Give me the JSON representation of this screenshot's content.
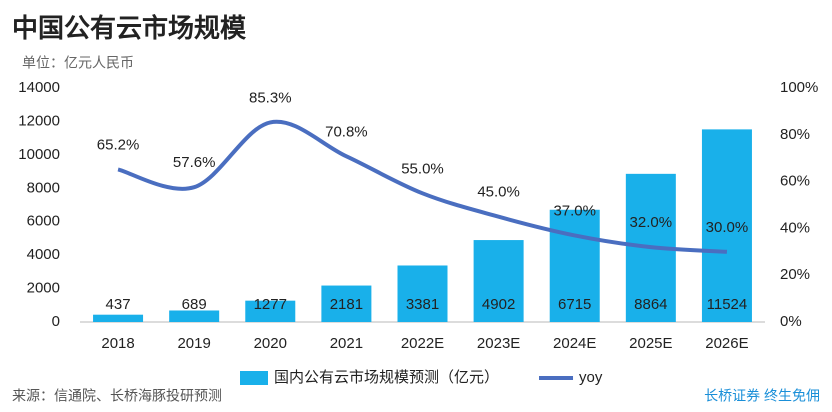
{
  "chart_data": {
    "type": "combo",
    "title": "中国公有云市场规模",
    "subtitle": "单位：亿元人民币",
    "source": "来源：信通院、长桥海豚投研预测",
    "brand": "长桥证券 终生免佣",
    "categories": [
      "2018",
      "2019",
      "2020",
      "2021",
      "2022E",
      "2023E",
      "2024E",
      "2025E",
      "2026E"
    ],
    "series": [
      {
        "name": "国内公有云市场规模预测（亿元）",
        "type": "bar",
        "color": "#19b0ea",
        "values": [
          437,
          689,
          1277,
          2181,
          3381,
          4902,
          6715,
          8864,
          11524
        ]
      },
      {
        "name": "yoy",
        "type": "line",
        "axis": "y2",
        "color": "#4a6ec0",
        "values": [
          65.2,
          57.6,
          85.3,
          70.8,
          55.0,
          45.0,
          37.0,
          32.0,
          30.0
        ],
        "value_labels": [
          "65.2%",
          "57.6%",
          "85.3%",
          "70.8%",
          "55.0%",
          "45.0%",
          "37.0%",
          "32.0%",
          "30.0%"
        ]
      }
    ],
    "ylim": [
      0,
      14000
    ],
    "yticks": [
      0,
      2000,
      4000,
      6000,
      8000,
      10000,
      12000,
      14000
    ],
    "y2lim": [
      0,
      100
    ],
    "y2ticks": [
      {
        "value": 0,
        "label": "0%"
      },
      {
        "value": 20,
        "label": "20%"
      },
      {
        "value": 40,
        "label": "40%"
      },
      {
        "value": 60,
        "label": "60%"
      },
      {
        "value": 80,
        "label": "80%"
      },
      {
        "value": 100,
        "label": "100%"
      }
    ],
    "legend": "bottom"
  }
}
